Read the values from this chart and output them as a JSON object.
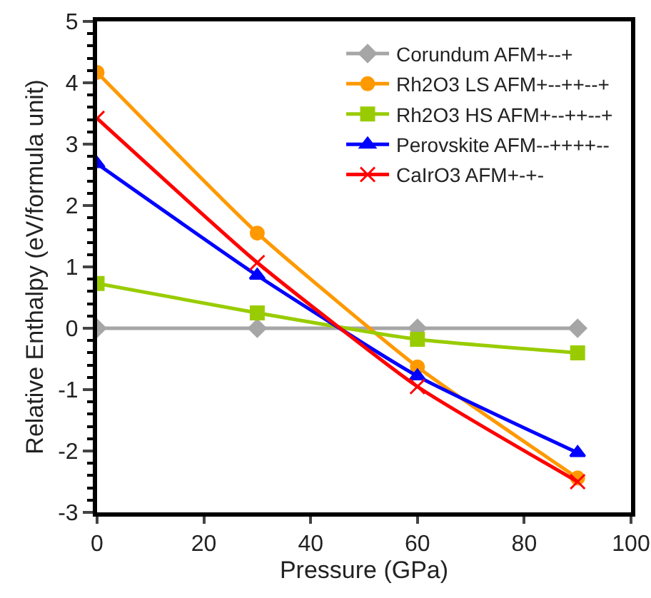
{
  "chart_data": {
    "type": "line",
    "xlabel": "Pressure (GPa)",
    "ylabel": "Relative Enthalpy (eV/formula unit)",
    "x": [
      0,
      30,
      60,
      90
    ],
    "xlim": [
      0,
      100
    ],
    "xticks": [
      0,
      20,
      40,
      60,
      80,
      100
    ],
    "ylim": [
      -3,
      5
    ],
    "yticks": [
      -3,
      -2,
      -1,
      0,
      1,
      2,
      3,
      4,
      5
    ],
    "grid": false,
    "legend": "top right",
    "series": [
      {
        "name": "Corundum AFM+--+",
        "color": "#a6a6a6",
        "marker": "diamond",
        "values": [
          0,
          0,
          0,
          0
        ]
      },
      {
        "name": "Rh2O3 LS AFM+--++--+",
        "color": "#ff9900",
        "marker": "circle",
        "values": [
          4.17,
          1.55,
          -0.63,
          -2.44
        ]
      },
      {
        "name": "Rh2O3 HS AFM+--++--+",
        "color": "#99cc00",
        "marker": "square",
        "values": [
          0.73,
          0.25,
          -0.18,
          -0.4
        ]
      },
      {
        "name": "Perovskite AFM--++++--",
        "color": "#0000ff",
        "marker": "triangle",
        "values": [
          2.68,
          0.86,
          -0.78,
          -2.03
        ]
      },
      {
        "name": "CaIrO3 AFM+-+-",
        "color": "#ff0000",
        "marker": "cross",
        "values": [
          3.42,
          1.07,
          -0.95,
          -2.5
        ]
      }
    ]
  }
}
